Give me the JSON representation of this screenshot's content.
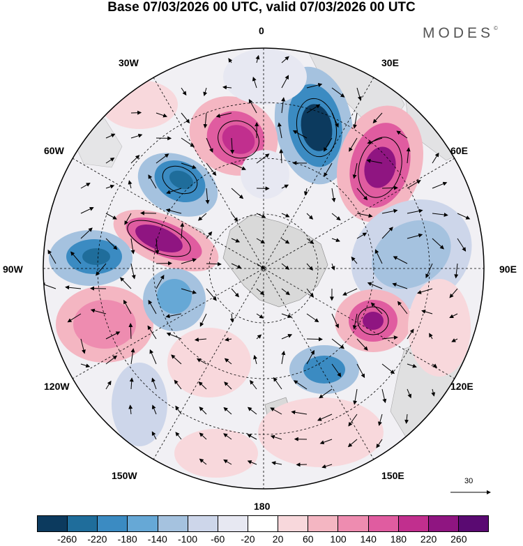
{
  "title": "Base 07/03/2026 00 UTC, valid 07/03/2026 00 UTC",
  "brand": "MODES",
  "brand_mark": "©",
  "meridians": {
    "top": "0",
    "top_right": "30E",
    "right_upper": "60E",
    "right": "90E",
    "right_lower": "120E",
    "bottom_right": "150E",
    "bottom": "180",
    "bottom_left": "150W",
    "left_lower": "120W",
    "left": "90W",
    "left_upper": "60W",
    "top_left": "30W"
  },
  "vector_scale": "30",
  "colorbar": {
    "colors": [
      "#0c3a5e",
      "#1f6d9b",
      "#3b8bc2",
      "#66a8d6",
      "#a5c2df",
      "#cdd6ea",
      "#e7e8f2",
      "#ffffff",
      "#f8d8dc",
      "#f4b6c2",
      "#ee8cb0",
      "#e05ca0",
      "#c12f8e",
      "#8f1581",
      "#5a0a72"
    ],
    "ticks": [
      "-260",
      "-220",
      "-180",
      "-140",
      "-100",
      "-60",
      "-20",
      "20",
      "60",
      "100",
      "140",
      "180",
      "220",
      "260"
    ]
  }
}
